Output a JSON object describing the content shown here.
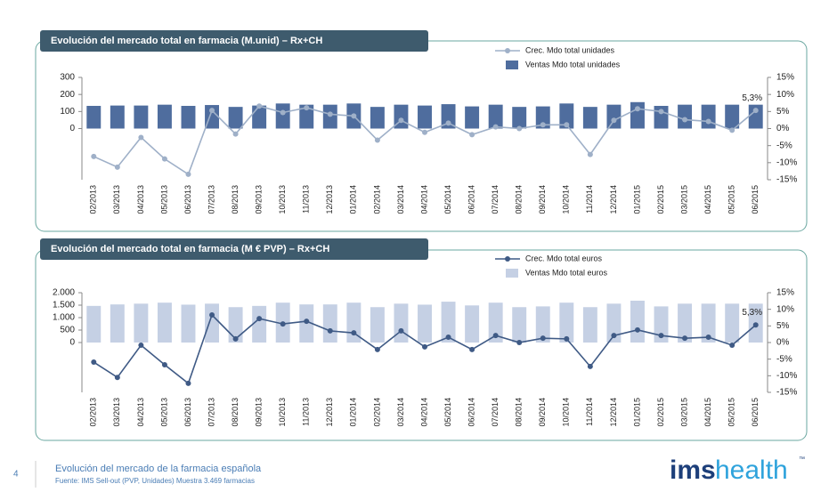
{
  "chart_data": [
    {
      "type": "combo",
      "title": "Evolución del mercado total en farmacia (M.unid) – Rx+CH",
      "categories": [
        "02/2013",
        "03/2013",
        "04/2013",
        "05/2013",
        "06/2013",
        "07/2013",
        "08/2013",
        "09/2013",
        "10/2013",
        "11/2013",
        "12/2013",
        "01/2014",
        "02/2014",
        "03/2014",
        "04/2014",
        "05/2014",
        "06/2014",
        "07/2014",
        "08/2014",
        "09/2014",
        "10/2014",
        "11/2014",
        "12/2014",
        "01/2015",
        "02/2015",
        "03/2015",
        "04/2015",
        "05/2015",
        "06/2015"
      ],
      "series": [
        {
          "name": "Crec. Mdo total unidades",
          "kind": "line",
          "axis": "y2",
          "color": "#9fb0c8",
          "values": [
            -8.2,
            -11.3,
            -2.6,
            -8.9,
            -13.4,
            5.3,
            -1.6,
            6.6,
            4.7,
            6.1,
            4.2,
            3.7,
            -3.4,
            2.4,
            -1.1,
            1.6,
            -1.8,
            0.5,
            0,
            1.1,
            1.1,
            -7.6,
            2.4,
            5.8,
            5.0,
            2.6,
            2.1,
            -0.5,
            5.3
          ],
          "value_labels": [
            null,
            null,
            null,
            null,
            null,
            null,
            null,
            null,
            null,
            null,
            null,
            null,
            null,
            null,
            null,
            null,
            null,
            null,
            null,
            null,
            null,
            null,
            null,
            null,
            null,
            null,
            null,
            null,
            "5,3%"
          ]
        },
        {
          "name": "Ventas Mdo total unidades",
          "kind": "bar",
          "color": "#4f6d9e",
          "values": [
            133,
            135,
            135,
            140,
            133,
            138,
            127,
            135,
            147,
            140,
            140,
            147,
            127,
            140,
            135,
            143,
            130,
            140,
            127,
            130,
            147,
            127,
            140,
            155,
            133,
            140,
            140,
            140,
            140
          ]
        }
      ],
      "ylim": [
        -300,
        300
      ],
      "yticks": [
        0,
        100,
        200,
        300
      ],
      "y2lim": [
        -15,
        15
      ],
      "y2ticks": [
        {
          "value": 15,
          "label": "15%"
        },
        {
          "value": 10,
          "label": "10%"
        },
        {
          "value": 5,
          "label": "5%"
        },
        {
          "value": 0,
          "label": "0%"
        },
        {
          "value": -5,
          "label": "-5%"
        },
        {
          "value": -10,
          "label": "-10%"
        },
        {
          "value": -15,
          "label": "-15%"
        }
      ]
    },
    {
      "type": "combo",
      "title": "Evolución del mercado total en farmacia (M € PVP) – Rx+CH",
      "categories": [
        "02/2013",
        "03/2013",
        "04/2013",
        "05/2013",
        "06/2013",
        "07/2013",
        "08/2013",
        "09/2013",
        "10/2013",
        "11/2013",
        "12/2013",
        "01/2014",
        "02/2014",
        "03/2014",
        "04/2014",
        "05/2014",
        "06/2014",
        "07/2014",
        "08/2014",
        "09/2014",
        "10/2014",
        "11/2014",
        "12/2014",
        "01/2015",
        "02/2015",
        "03/2015",
        "04/2015",
        "05/2015",
        "06/2015"
      ],
      "series": [
        {
          "name": "Crec. Mdo total euros",
          "kind": "line",
          "axis": "y2",
          "color": "#3f5a85",
          "values": [
            -5.9,
            -10.5,
            -0.8,
            -6.7,
            -12.3,
            8.3,
            1.1,
            7.2,
            5.6,
            6.4,
            3.5,
            2.9,
            -2.1,
            3.5,
            -1.3,
            1.6,
            -2.1,
            2.1,
            0,
            1.3,
            1.1,
            -7.2,
            2.1,
            3.8,
            2.1,
            1.3,
            1.6,
            -0.8,
            5.3
          ],
          "value_labels": [
            null,
            null,
            null,
            null,
            null,
            null,
            null,
            null,
            null,
            null,
            null,
            null,
            null,
            null,
            null,
            null,
            null,
            null,
            null,
            null,
            null,
            null,
            null,
            null,
            null,
            null,
            null,
            null,
            "5,3%"
          ]
        },
        {
          "name": "Ventas Mdo total euros",
          "kind": "bar",
          "color": "#c5d0e4",
          "values": [
            1470,
            1530,
            1560,
            1600,
            1520,
            1560,
            1420,
            1470,
            1600,
            1530,
            1530,
            1600,
            1420,
            1560,
            1520,
            1640,
            1490,
            1600,
            1420,
            1450,
            1600,
            1420,
            1560,
            1680,
            1450,
            1560,
            1560,
            1560,
            1560
          ]
        }
      ],
      "ylim": [
        -2000,
        2000
      ],
      "yticks": [
        0,
        500,
        {
          "value": 1000,
          "label": "1.000"
        },
        {
          "value": 1500,
          "label": "1.500"
        },
        {
          "value": 2000,
          "label": "2.000"
        }
      ],
      "y2lim": [
        -15,
        15
      ],
      "y2ticks": [
        {
          "value": 15,
          "label": "15%"
        },
        {
          "value": 10,
          "label": "10%"
        },
        {
          "value": 5,
          "label": "5%"
        },
        {
          "value": 0,
          "label": "0%"
        },
        {
          "value": -5,
          "label": "-5%"
        },
        {
          "value": -10,
          "label": "-10%"
        },
        {
          "value": -15,
          "label": "-15%"
        }
      ]
    }
  ],
  "footer": {
    "page": "4",
    "title": "Evolución del mercado de la farmacia española",
    "source": "Fuente: IMS Sell-out  (PVP, Unidades) Muestra 3.469  farmacias"
  },
  "logo": {
    "ims": "ims",
    "health": "health",
    "tm": "™"
  }
}
